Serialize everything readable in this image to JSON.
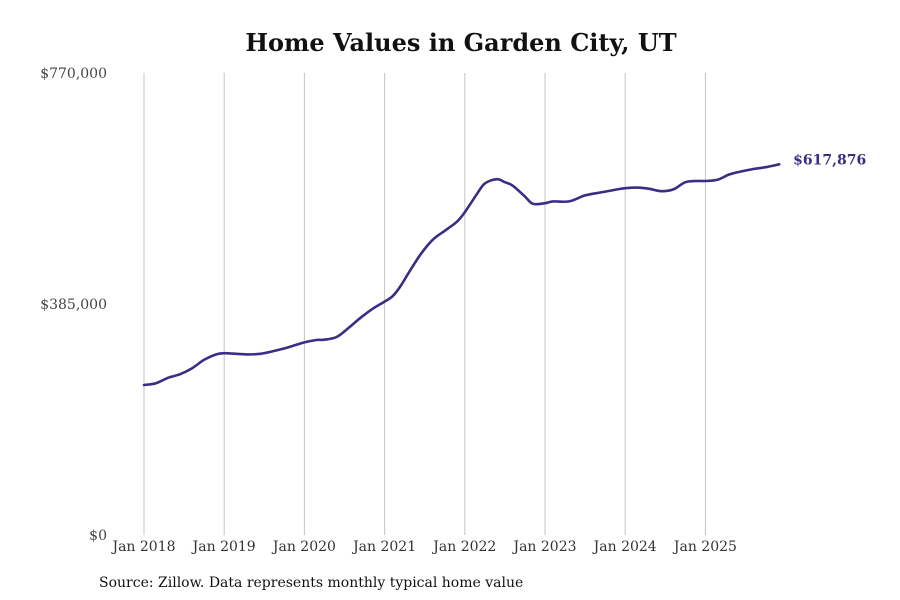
{
  "chart_data": {
    "type": "line",
    "title": "Home Values in Garden City, UT",
    "xlabel": "",
    "ylabel": "",
    "ylim": [
      0,
      770000
    ],
    "y_ticks": [
      {
        "value": 0,
        "label": "$0"
      },
      {
        "value": 385000,
        "label": "$385,000"
      },
      {
        "value": 770000,
        "label": "$770,000"
      }
    ],
    "x_ticks": [
      {
        "value": 2018.0,
        "label": "Jan 2018"
      },
      {
        "value": 2019.0,
        "label": "Jan 2019"
      },
      {
        "value": 2020.0,
        "label": "Jan 2020"
      },
      {
        "value": 2021.0,
        "label": "Jan 2021"
      },
      {
        "value": 2022.0,
        "label": "Jan 2022"
      },
      {
        "value": 2023.0,
        "label": "Jan 2023"
      },
      {
        "value": 2024.0,
        "label": "Jan 2024"
      },
      {
        "value": 2025.0,
        "label": "Jan 2025"
      }
    ],
    "xlim": [
      2017.8,
      2026.2
    ],
    "grid": "vertical",
    "series": [
      {
        "name": "Typical home value",
        "color": "#3a2d85",
        "end_label": "$617,876",
        "x": [
          2018.0,
          2018.15,
          2018.3,
          2018.45,
          2018.6,
          2018.75,
          2018.9,
          2019.0,
          2019.15,
          2019.3,
          2019.45,
          2019.6,
          2019.75,
          2019.9,
          2020.0,
          2020.15,
          2020.25,
          2020.4,
          2020.55,
          2020.7,
          2020.85,
          2021.0,
          2021.1,
          2021.2,
          2021.3,
          2021.45,
          2021.6,
          2021.75,
          2021.9,
          2022.0,
          2022.15,
          2022.25,
          2022.4,
          2022.5,
          2022.6,
          2022.75,
          2022.85,
          2023.0,
          2023.1,
          2023.3,
          2023.5,
          2023.7,
          2023.9,
          2024.0,
          2024.15,
          2024.3,
          2024.45,
          2024.6,
          2024.75,
          2024.9,
          2025.0,
          2025.15,
          2025.3,
          2025.45,
          2025.6,
          2025.75,
          2025.92
        ],
        "values": [
          250000,
          253000,
          262000,
          268000,
          278000,
          292000,
          301000,
          303000,
          302000,
          301000,
          302000,
          306000,
          311000,
          317000,
          321000,
          325000,
          325500,
          330000,
          345000,
          362000,
          377000,
          389000,
          398000,
          415000,
          437000,
          468000,
          492000,
          507000,
          522000,
          538000,
          568000,
          586000,
          593000,
          588000,
          582000,
          564000,
          552000,
          553000,
          556000,
          556000,
          566000,
          571000,
          576000,
          578000,
          579000,
          577000,
          573000,
          576000,
          588000,
          590000,
          590000,
          592000,
          601000,
          606000,
          610000,
          613000,
          617876
        ]
      }
    ]
  },
  "footer": {
    "source": "Source: Zillow. Data represents monthly typical home value"
  }
}
